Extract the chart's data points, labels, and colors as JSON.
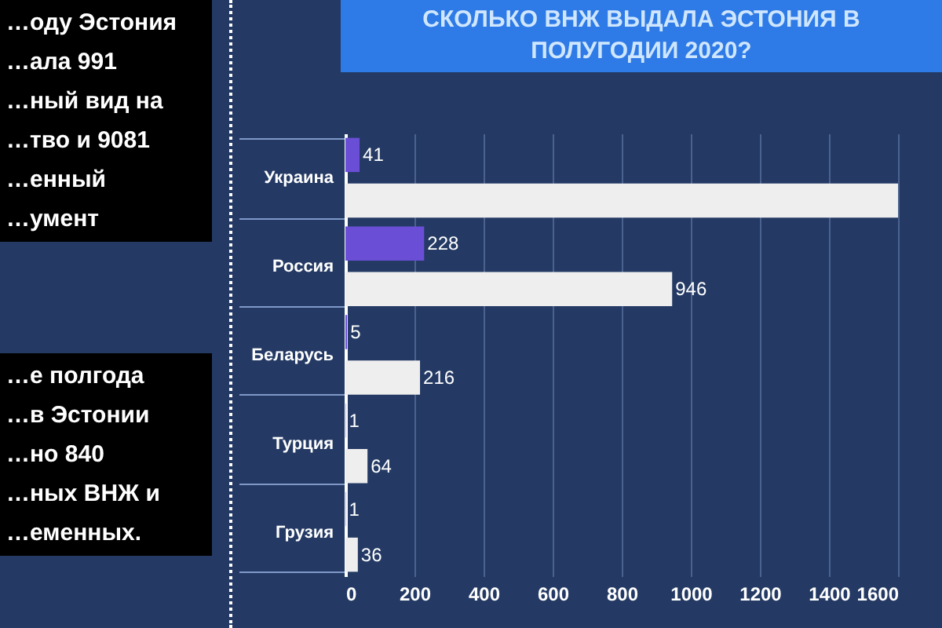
{
  "chart_data": {
    "type": "bar",
    "orientation": "horizontal",
    "title": "СКОЛЬКО ВНЖ ВЫДАЛА ЭСТОНИЯ В\nПОЛУГОДИИ 2020?",
    "categories": [
      "Украина",
      "Россия",
      "Беларусь",
      "Турция",
      "Грузия"
    ],
    "series": [
      {
        "color": "#6a4fd6",
        "values": [
          41,
          228,
          5,
          1,
          1
        ],
        "value_labels": [
          "41",
          "228",
          "5",
          "1",
          "1"
        ]
      },
      {
        "color": "#eeeeee",
        "values": [
          1600,
          946,
          216,
          64,
          36
        ],
        "value_labels": [
          null,
          "946",
          "216",
          "64",
          "36"
        ]
      }
    ],
    "xlim": [
      0,
      1600
    ],
    "xticks": [
      0,
      200,
      400,
      600,
      800,
      1000,
      1200,
      1400,
      1600
    ],
    "grid": "x",
    "annotations": [
      "…оду Эстония\n…ала 991\n…ный вид на\n…тво и 9081\n…енный\n…умент",
      "…е полгода\n…в Эстонии\n…но 840\n…ных ВНЖ и\n…еменных."
    ]
  }
}
